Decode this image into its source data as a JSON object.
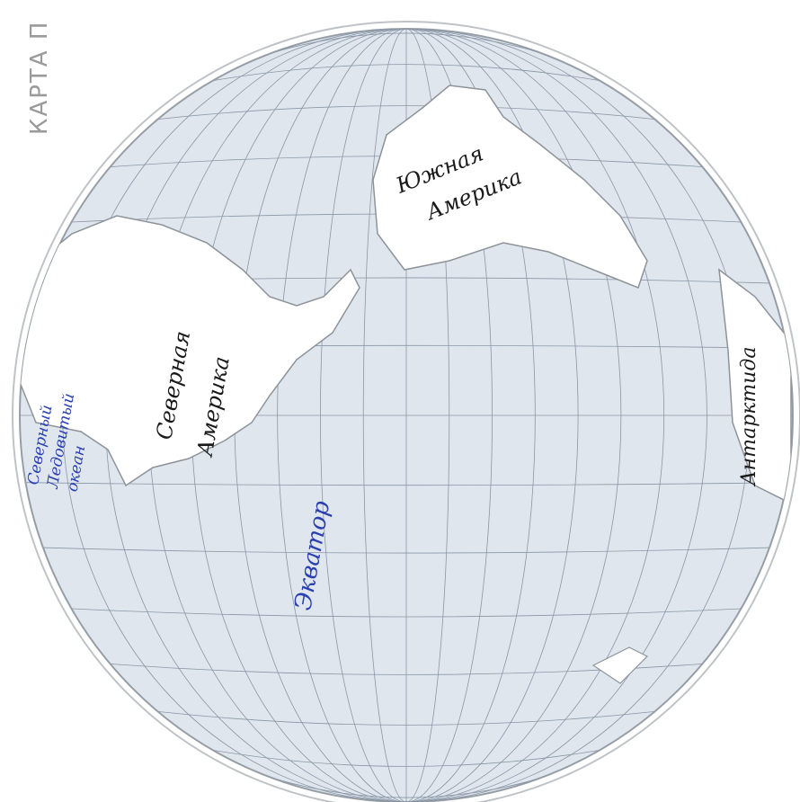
{
  "header": {
    "title": "КАРТА П"
  },
  "labels": [
    {
      "lines": [
        "Южная",
        "Америка"
      ]
    },
    {
      "lines": [
        "Северная",
        "Америка"
      ]
    },
    {
      "lines": [
        "Северный",
        "Ледовитый",
        "океан"
      ]
    },
    {
      "lines": [
        "Экватор"
      ]
    },
    {
      "lines": [
        "Антарктида"
      ]
    }
  ]
}
